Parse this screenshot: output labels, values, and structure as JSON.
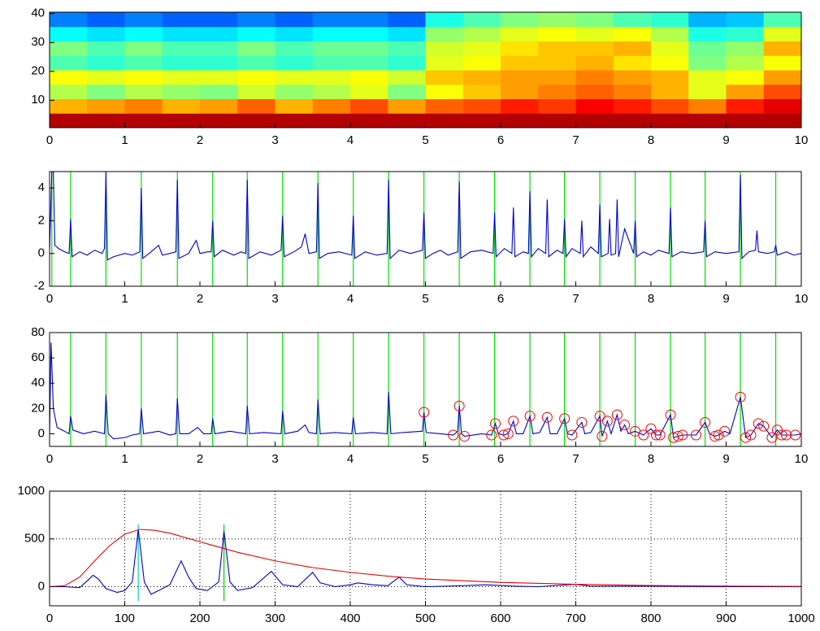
{
  "chart_data": [
    {
      "type": "heatmap",
      "xlim": [
        0,
        10
      ],
      "ylim": [
        0.5,
        40.5
      ],
      "xticks": [
        0,
        1,
        2,
        3,
        4,
        5,
        6,
        7,
        8,
        9,
        10
      ],
      "yticks": [
        10,
        20,
        30,
        40
      ],
      "colormap": "jet",
      "grid": false,
      "z": [
        [
          0.95,
          0.95,
          0.95,
          0.95,
          0.95,
          0.95,
          0.95,
          0.95,
          0.95,
          0.95,
          0.95,
          0.95,
          0.95,
          0.95,
          0.95,
          0.95,
          0.95,
          0.95,
          0.95,
          0.95
        ],
        [
          0.7,
          0.72,
          0.75,
          0.7,
          0.72,
          0.78,
          0.7,
          0.75,
          0.8,
          0.72,
          0.78,
          0.8,
          0.85,
          0.82,
          0.88,
          0.85,
          0.8,
          0.75,
          0.85,
          0.9
        ],
        [
          0.55,
          0.5,
          0.55,
          0.52,
          0.5,
          0.58,
          0.52,
          0.55,
          0.6,
          0.5,
          0.62,
          0.68,
          0.72,
          0.75,
          0.78,
          0.75,
          0.7,
          0.6,
          0.72,
          0.8
        ],
        [
          0.62,
          0.6,
          0.62,
          0.6,
          0.6,
          0.62,
          0.6,
          0.6,
          0.62,
          0.58,
          0.68,
          0.7,
          0.72,
          0.72,
          0.75,
          0.72,
          0.7,
          0.6,
          0.62,
          0.72
        ],
        [
          0.45,
          0.42,
          0.45,
          0.42,
          0.42,
          0.45,
          0.42,
          0.45,
          0.45,
          0.42,
          0.6,
          0.62,
          0.68,
          0.68,
          0.7,
          0.65,
          0.62,
          0.5,
          0.55,
          0.62
        ],
        [
          0.5,
          0.45,
          0.5,
          0.45,
          0.45,
          0.5,
          0.45,
          0.48,
          0.48,
          0.45,
          0.58,
          0.6,
          0.65,
          0.68,
          0.68,
          0.7,
          0.6,
          0.48,
          0.52,
          0.7
        ],
        [
          0.38,
          0.35,
          0.38,
          0.35,
          0.35,
          0.38,
          0.35,
          0.38,
          0.38,
          0.35,
          0.52,
          0.55,
          0.6,
          0.62,
          0.6,
          0.62,
          0.55,
          0.4,
          0.42,
          0.6
        ],
        [
          0.25,
          0.22,
          0.25,
          0.22,
          0.22,
          0.25,
          0.22,
          0.25,
          0.25,
          0.22,
          0.4,
          0.45,
          0.5,
          0.52,
          0.5,
          0.45,
          0.42,
          0.3,
          0.32,
          0.45
        ]
      ]
    },
    {
      "type": "line",
      "xlim": [
        0,
        10
      ],
      "ylim": [
        -2,
        5
      ],
      "xticks": [
        0,
        1,
        2,
        3,
        4,
        5,
        6,
        7,
        8,
        9,
        10
      ],
      "yticks": [
        -2,
        0,
        2,
        4
      ],
      "grid": false,
      "vlines": {
        "color": "#00e000",
        "x": [
          0.03,
          0.28,
          0.75,
          1.22,
          1.7,
          2.17,
          2.63,
          3.1,
          3.57,
          4.04,
          4.51,
          4.98,
          5.45,
          5.92,
          6.39,
          6.85,
          7.32,
          7.79,
          8.26,
          8.72,
          9.19,
          9.66
        ]
      },
      "series": [
        {
          "color": "#0000cc",
          "x": [
            0,
            0.03,
            0.05,
            0.07,
            0.12,
            0.2,
            0.26,
            0.28,
            0.3,
            0.4,
            0.5,
            0.6,
            0.7,
            0.73,
            0.75,
            0.77,
            0.85,
            1.0,
            1.1,
            1.2,
            1.22,
            1.24,
            1.35,
            1.45,
            1.5,
            1.6,
            1.68,
            1.7,
            1.72,
            1.85,
            1.95,
            2.0,
            2.1,
            2.15,
            2.17,
            2.19,
            2.3,
            2.45,
            2.55,
            2.61,
            2.63,
            2.65,
            2.8,
            2.95,
            3.08,
            3.1,
            3.12,
            3.25,
            3.35,
            3.4,
            3.45,
            3.55,
            3.57,
            3.59,
            3.7,
            3.85,
            4.02,
            4.04,
            4.06,
            4.2,
            4.35,
            4.49,
            4.51,
            4.53,
            4.65,
            4.8,
            4.96,
            4.98,
            5.0,
            5.1,
            5.2,
            5.3,
            5.43,
            5.45,
            5.47,
            5.6,
            5.75,
            5.9,
            5.92,
            5.94,
            6.05,
            6.15,
            6.17,
            6.19,
            6.3,
            6.37,
            6.39,
            6.41,
            6.5,
            6.6,
            6.62,
            6.64,
            6.75,
            6.83,
            6.85,
            6.87,
            6.95,
            7.06,
            7.08,
            7.1,
            7.2,
            7.3,
            7.32,
            7.34,
            7.43,
            7.45,
            7.47,
            7.53,
            7.55,
            7.57,
            7.65,
            7.77,
            7.79,
            7.81,
            7.9,
            8.0,
            8.1,
            8.24,
            8.26,
            8.28,
            8.4,
            8.55,
            8.7,
            8.72,
            8.74,
            8.85,
            9.0,
            9.17,
            9.19,
            9.21,
            9.3,
            9.39,
            9.41,
            9.43,
            9.55,
            9.64,
            9.66,
            9.68,
            9.8,
            9.9,
            10
          ],
          "values": [
            0.2,
            5,
            5,
            0.5,
            0.3,
            0.1,
            0,
            2.1,
            -0.2,
            0.1,
            -0.1,
            0.2,
            0,
            0.3,
            5,
            -0.4,
            -0.2,
            0,
            -0.1,
            0.1,
            4,
            -0.3,
            0.1,
            0.5,
            -0.1,
            0,
            0.1,
            4.5,
            -0.3,
            0,
            0.8,
            0,
            0.1,
            0.1,
            2,
            -0.2,
            0.2,
            -0.1,
            0.1,
            0,
            4.5,
            -0.3,
            0.1,
            -0.1,
            0.2,
            2.3,
            -0.2,
            0.1,
            0.4,
            1.2,
            0,
            0.1,
            4.3,
            -0.3,
            0,
            0.1,
            -0.1,
            2.3,
            -0.3,
            0.1,
            -0.1,
            0,
            4.5,
            -0.3,
            0.2,
            0,
            0.2,
            2.5,
            -0.3,
            0,
            0.2,
            -0.1,
            0.1,
            4.4,
            -0.3,
            0.1,
            0.2,
            0,
            2.5,
            -0.2,
            0.3,
            0,
            2.8,
            -0.2,
            0.1,
            0,
            3.8,
            -0.2,
            0.3,
            0,
            3.3,
            -0.2,
            0.2,
            0,
            2.1,
            -0.2,
            0.3,
            0,
            2,
            -0.2,
            0.4,
            0,
            3,
            -0.2,
            0,
            2.1,
            -0.1,
            0,
            3.3,
            -0.2,
            1.5,
            0,
            2,
            -0.2,
            0.1,
            -0.1,
            0.2,
            0,
            2.8,
            -0.2,
            0.1,
            0,
            0.1,
            2,
            -0.2,
            0.1,
            0,
            0.1,
            4.8,
            -0.3,
            0.1,
            0.2,
            1.4,
            0.1,
            0,
            0.1,
            0.5,
            -0.1,
            0.1,
            -0.1,
            0
          ]
        }
      ]
    },
    {
      "type": "line",
      "xlim": [
        0,
        10
      ],
      "ylim": [
        -10,
        80
      ],
      "xticks": [
        0,
        1,
        2,
        3,
        4,
        5,
        6,
        7,
        8,
        9,
        10
      ],
      "yticks": [
        0,
        20,
        40,
        60,
        80
      ],
      "grid": false,
      "vlines": {
        "color": "#00e000",
        "x": [
          0.28,
          0.75,
          1.22,
          1.7,
          2.17,
          2.63,
          3.1,
          3.57,
          4.04,
          4.51,
          4.98,
          5.45,
          5.92,
          6.39,
          6.85,
          7.32,
          7.79,
          8.26,
          8.72,
          9.19,
          9.66
        ]
      },
      "series": [
        {
          "color": "#0000cc",
          "x": [
            0,
            0.02,
            0.05,
            0.1,
            0.2,
            0.26,
            0.28,
            0.31,
            0.45,
            0.6,
            0.73,
            0.75,
            0.78,
            0.85,
            1.0,
            1.1,
            1.2,
            1.22,
            1.25,
            1.45,
            1.6,
            1.68,
            1.7,
            1.73,
            1.85,
            1.97,
            2.05,
            2.15,
            2.17,
            2.2,
            2.4,
            2.61,
            2.63,
            2.66,
            2.85,
            3.08,
            3.1,
            3.13,
            3.3,
            3.4,
            3.45,
            3.55,
            3.57,
            3.6,
            3.8,
            4.02,
            4.04,
            4.07,
            4.3,
            4.49,
            4.51,
            4.54,
            4.7,
            4.96,
            4.98,
            5.01,
            5.2,
            5.37,
            5.43,
            5.45,
            5.48,
            5.52,
            5.75,
            5.88,
            5.93,
            5.97,
            6.04,
            6.1,
            6.17,
            6.21,
            6.3,
            6.39,
            6.43,
            6.52,
            6.62,
            6.66,
            6.75,
            6.85,
            6.89,
            6.95,
            7.08,
            7.12,
            7.2,
            7.32,
            7.35,
            7.42,
            7.47,
            7.55,
            7.6,
            7.65,
            7.7,
            7.79,
            7.9,
            8.0,
            8.07,
            8.12,
            8.26,
            8.3,
            8.36,
            8.42,
            8.6,
            8.72,
            8.78,
            8.85,
            8.9,
            8.98,
            9.05,
            9.19,
            9.26,
            9.33,
            9.43,
            9.5,
            9.61,
            9.68,
            9.74,
            9.8,
            9.92,
            10
          ],
          "values": [
            0,
            72,
            20,
            5,
            2,
            0,
            14,
            3,
            0,
            2,
            0,
            31,
            0,
            -4,
            -3,
            -1,
            0,
            20,
            0,
            2,
            -1,
            0,
            28,
            0,
            0,
            5,
            0,
            0,
            12,
            0,
            2,
            0,
            22,
            0,
            1,
            0,
            18,
            0,
            2,
            7,
            1,
            0,
            27,
            0,
            1,
            0,
            13,
            0,
            1,
            0,
            33,
            0,
            1,
            2,
            17,
            1,
            0,
            -1,
            2,
            22,
            0,
            -2,
            0,
            -1,
            8,
            0,
            -1,
            0,
            10,
            0,
            0,
            14,
            0,
            1,
            13,
            0,
            0,
            12,
            0,
            -1,
            9,
            0,
            1,
            14,
            -2,
            10,
            0,
            15,
            2,
            7,
            0,
            2,
            -1,
            4,
            -1,
            -1,
            15,
            -3,
            -2,
            -1,
            -1,
            9,
            0,
            -2,
            -1,
            2,
            0,
            29,
            -3,
            -1,
            8,
            6,
            -3,
            3,
            -1,
            -1,
            -1,
            0
          ]
        }
      ],
      "markers": {
        "color": "#ff0000",
        "x": [
          4.98,
          5.37,
          5.45,
          5.52,
          5.88,
          5.93,
          6.04,
          6.1,
          6.17,
          6.39,
          6.62,
          6.85,
          6.95,
          7.08,
          7.32,
          7.35,
          7.42,
          7.55,
          7.65,
          7.79,
          7.9,
          8.0,
          8.07,
          8.12,
          8.26,
          8.3,
          8.36,
          8.42,
          8.6,
          8.72,
          8.85,
          8.9,
          8.98,
          9.19,
          9.26,
          9.33,
          9.43,
          9.5,
          9.61,
          9.68,
          9.74,
          9.8,
          9.92
        ],
        "values": [
          17,
          -1,
          22,
          -2,
          -1,
          8,
          -1,
          0,
          10,
          14,
          13,
          12,
          -1,
          9,
          14,
          -2,
          10,
          15,
          7,
          2,
          -1,
          4,
          -1,
          -1,
          15,
          -3,
          -2,
          -1,
          -1,
          9,
          -2,
          -1,
          2,
          29,
          -3,
          -1,
          8,
          6,
          -3,
          3,
          -1,
          -1,
          -1
        ]
      }
    },
    {
      "type": "line",
      "xlim": [
        0,
        1000
      ],
      "ylim": [
        -200,
        1000
      ],
      "xticks": [
        0,
        100,
        200,
        300,
        400,
        500,
        600,
        700,
        800,
        900,
        1000
      ],
      "yticks": [
        0,
        500,
        1000
      ],
      "grid": true,
      "vlines": {
        "colors": [
          "#00cccc",
          "#00cc00"
        ],
        "x": [
          118,
          232
        ],
        "y": [
          -150,
          650
        ]
      },
      "series": [
        {
          "color": "#0000cc",
          "x": [
            0,
            20,
            40,
            50,
            58,
            65,
            75,
            90,
            100,
            110,
            118,
            126,
            135,
            145,
            160,
            175,
            185,
            195,
            210,
            225,
            232,
            240,
            250,
            270,
            295,
            310,
            330,
            350,
            360,
            380,
            400,
            410,
            430,
            450,
            465,
            475,
            500,
            550,
            580,
            620,
            650,
            700,
            720,
            800,
            900,
            1000
          ],
          "values": [
            0,
            0,
            -10,
            60,
            120,
            80,
            -20,
            -60,
            -40,
            50,
            600,
            50,
            -80,
            -40,
            20,
            270,
            100,
            -20,
            -40,
            50,
            580,
            50,
            -40,
            -10,
            160,
            20,
            0,
            150,
            40,
            0,
            20,
            40,
            20,
            10,
            100,
            20,
            0,
            10,
            20,
            5,
            0,
            25,
            5,
            5,
            0,
            0
          ]
        },
        {
          "color": "#ee0000",
          "x": [
            0,
            20,
            40,
            60,
            80,
            100,
            120,
            140,
            160,
            200,
            250,
            300,
            350,
            400,
            450,
            500,
            600,
            700,
            800,
            900,
            1000
          ],
          "values": [
            0,
            10,
            100,
            270,
            430,
            550,
            600,
            590,
            560,
            470,
            360,
            270,
            200,
            150,
            110,
            80,
            45,
            25,
            12,
            6,
            3
          ]
        }
      ]
    }
  ]
}
